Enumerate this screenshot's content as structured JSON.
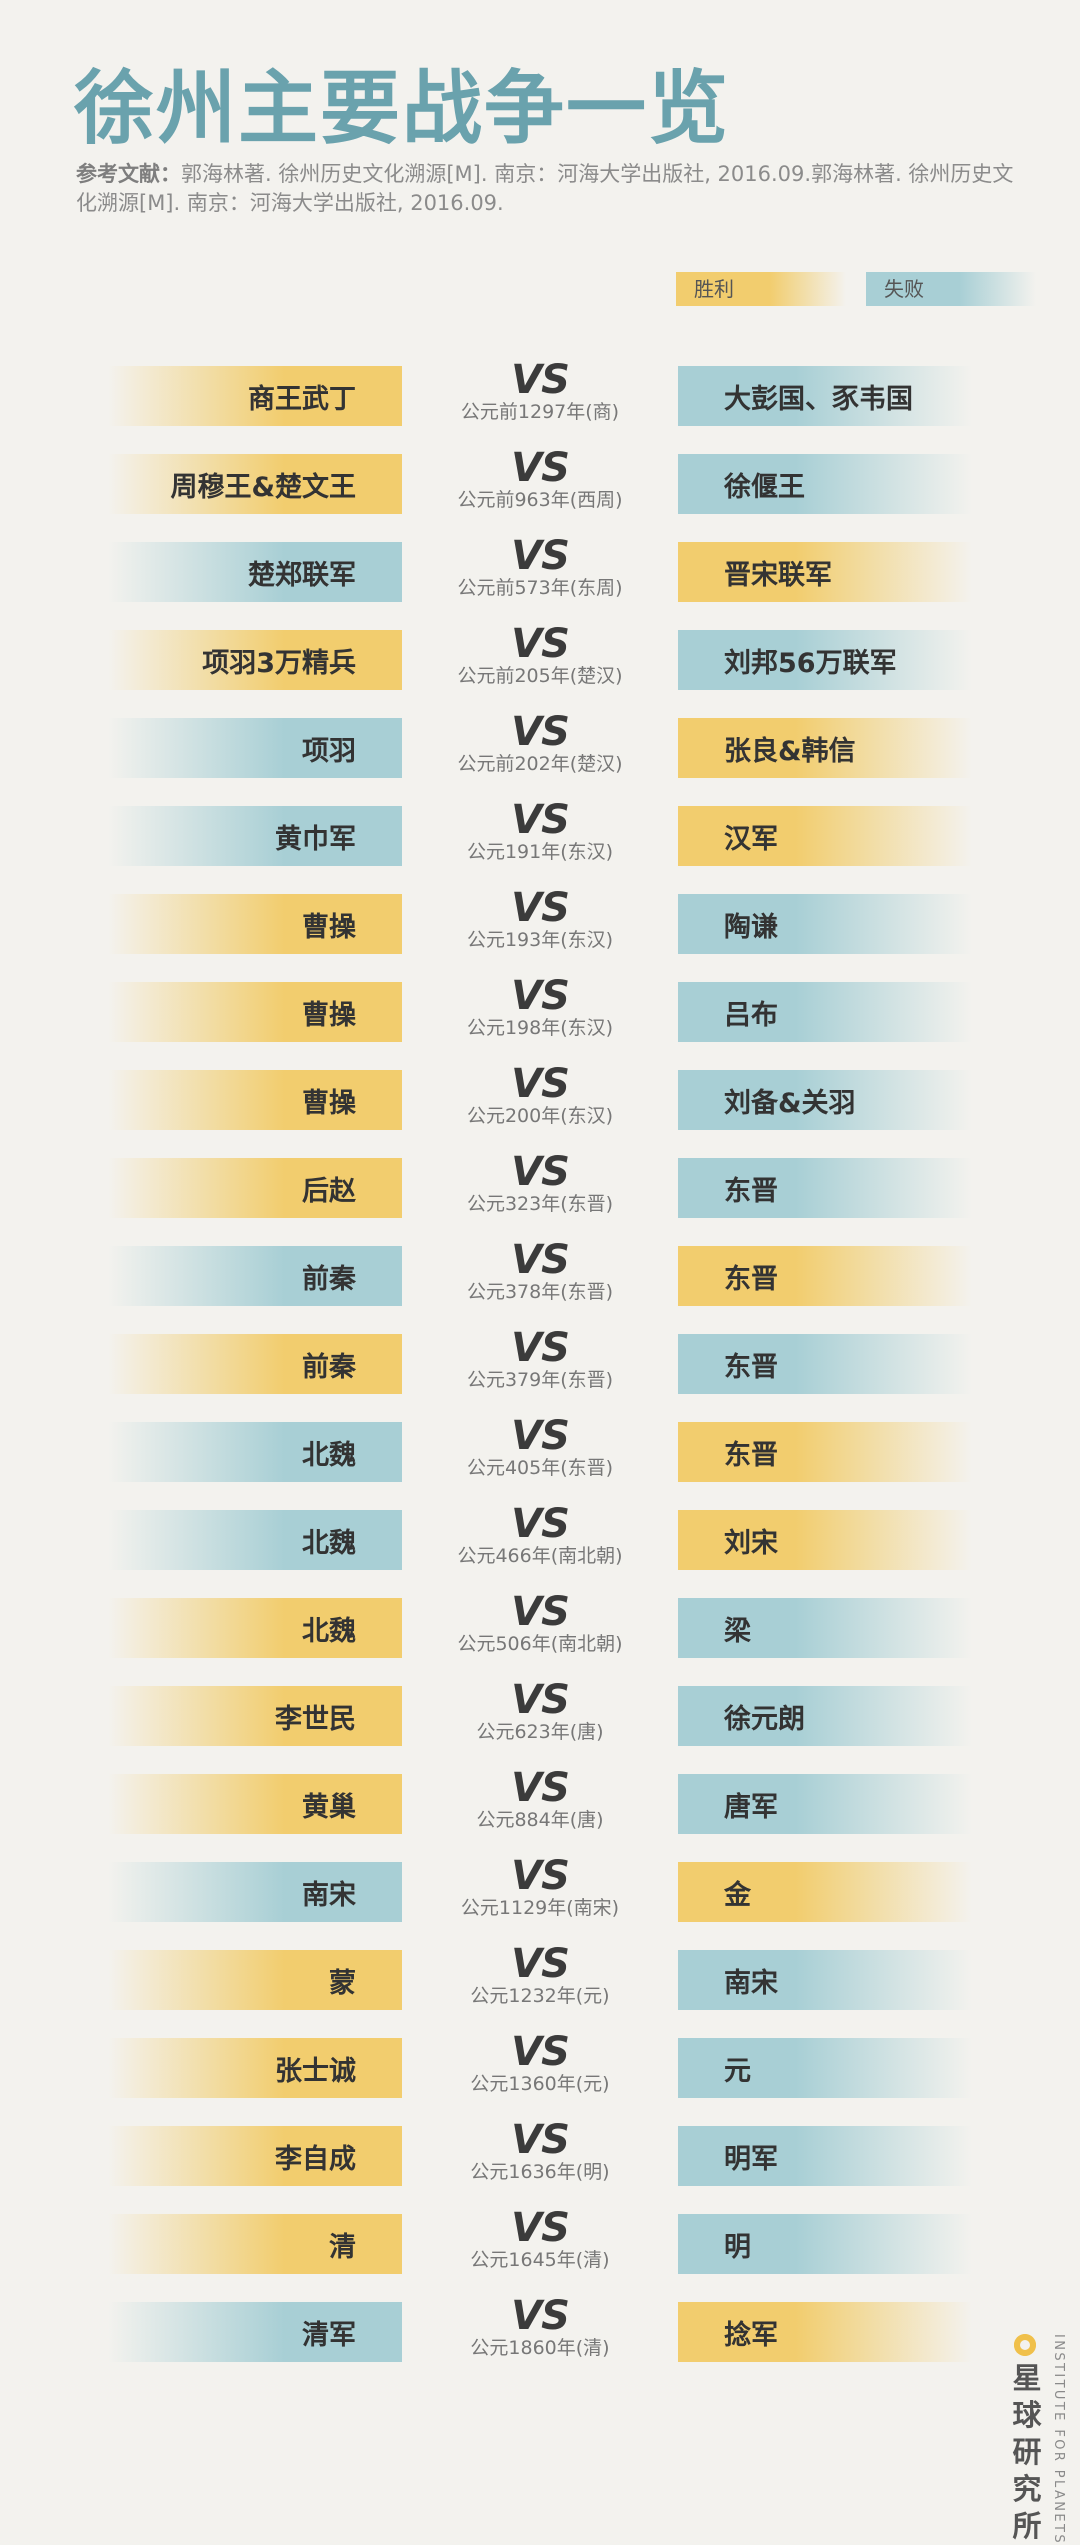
{
  "title": "徐州主要战争一览",
  "reference_label": "参考文献：",
  "reference_text": "郭海林著. 徐州历史文化溯源[M]. 南京：河海大学出版社, 2016.09.郭海林著. 徐州历史文化溯源[M]. 南京：河海大学出版社, 2016.09.",
  "legend": {
    "win": "胜利",
    "lose": "失败"
  },
  "colors": {
    "win": "#f2cd6e",
    "lose": "#a8cfd5",
    "title": "#6aa2ad"
  },
  "vs_label": "VS",
  "battles": [
    {
      "left": "商王武丁",
      "right": "大彭国、豕韦国",
      "date": "公元前1297年(商)",
      "winner": "left"
    },
    {
      "left": "周穆王&楚文王",
      "right": "徐偃王",
      "date": "公元前963年(西周)",
      "winner": "left"
    },
    {
      "left": "楚郑联军",
      "right": "晋宋联军",
      "date": "公元前573年(东周)",
      "winner": "right"
    },
    {
      "left": "项羽3万精兵",
      "right": "刘邦56万联军",
      "date": "公元前205年(楚汉)",
      "winner": "left"
    },
    {
      "left": "项羽",
      "right": "张良&韩信",
      "date": "公元前202年(楚汉)",
      "winner": "right"
    },
    {
      "left": "黄巾军",
      "right": "汉军",
      "date": "公元191年(东汉)",
      "winner": "right"
    },
    {
      "left": "曹操",
      "right": "陶谦",
      "date": "公元193年(东汉)",
      "winner": "left"
    },
    {
      "left": "曹操",
      "right": "吕布",
      "date": "公元198年(东汉)",
      "winner": "left"
    },
    {
      "left": "曹操",
      "right": "刘备&关羽",
      "date": "公元200年(东汉)",
      "winner": "left"
    },
    {
      "left": "后赵",
      "right": "东晋",
      "date": "公元323年(东晋)",
      "winner": "left"
    },
    {
      "left": "前秦",
      "right": "东晋",
      "date": "公元378年(东晋)",
      "winner": "right"
    },
    {
      "left": "前秦",
      "right": "东晋",
      "date": "公元379年(东晋)",
      "winner": "left"
    },
    {
      "left": "北魏",
      "right": "东晋",
      "date": "公元405年(东晋)",
      "winner": "right"
    },
    {
      "left": "北魏",
      "right": "刘宋",
      "date": "公元466年(南北朝)",
      "winner": "right"
    },
    {
      "left": "北魏",
      "right": "梁",
      "date": "公元506年(南北朝)",
      "winner": "left"
    },
    {
      "left": "李世民",
      "right": "徐元朗",
      "date": "公元623年(唐)",
      "winner": "left"
    },
    {
      "left": "黄巢",
      "right": "唐军",
      "date": "公元884年(唐)",
      "winner": "left"
    },
    {
      "left": "南宋",
      "right": "金",
      "date": "公元1129年(南宋)",
      "winner": "right"
    },
    {
      "left": "蒙",
      "right": "南宋",
      "date": "公元1232年(元)",
      "winner": "left"
    },
    {
      "left": "张士诚",
      "right": "元",
      "date": "公元1360年(元)",
      "winner": "left"
    },
    {
      "left": "李自成",
      "right": "明军",
      "date": "公元1636年(明)",
      "winner": "left"
    },
    {
      "left": "清",
      "right": "明",
      "date": "公元1645年(清)",
      "winner": "left"
    },
    {
      "left": "清军",
      "right": "捻军",
      "date": "公元1860年(清)",
      "winner": "right"
    }
  ],
  "brand": {
    "name": "星球研究所",
    "name_en": "INSTITUTE FOR PLANETS",
    "logo_icon": "planet-ring-icon"
  }
}
